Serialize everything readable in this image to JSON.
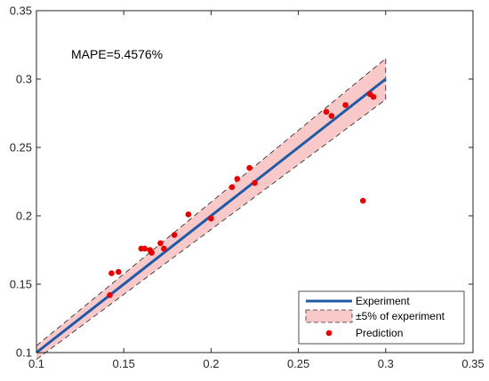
{
  "chart_data": {
    "type": "scatter",
    "xlim": [
      0.1,
      0.35
    ],
    "ylim": [
      0.1,
      0.35
    ],
    "x_ticks": [
      0.1,
      0.15,
      0.2,
      0.25,
      0.3,
      0.35
    ],
    "y_ticks": [
      0.1,
      0.15,
      0.2,
      0.25,
      0.3,
      0.35
    ],
    "x_tick_labels": [
      "0.1",
      "0.15",
      "0.2",
      "0.25",
      "0.3",
      "0.35"
    ],
    "y_tick_labels": [
      "0.1",
      "0.15",
      "0.2",
      "0.25",
      "0.3",
      "0.35"
    ],
    "annotation": "MAPE=5.4576%",
    "grid": false,
    "legend_position": "bottom-right",
    "legend": [
      {
        "label": "Experiment",
        "type": "line",
        "color": "#1f5aa6"
      },
      {
        "label": "±5% of experiment",
        "type": "band",
        "color": "#f9c9c9"
      },
      {
        "label": "Prediction",
        "type": "marker",
        "color": "#e60000"
      }
    ],
    "series": [
      {
        "name": "Experiment",
        "type": "line",
        "x": [
          0.1,
          0.3
        ],
        "y": [
          0.1,
          0.3
        ]
      },
      {
        "name": "±5% of experiment",
        "type": "band",
        "x": [
          0.1,
          0.3
        ],
        "lower": [
          0.095,
          0.285
        ],
        "upper": [
          0.105,
          0.315
        ]
      },
      {
        "name": "Prediction",
        "type": "scatter",
        "points": [
          [
            0.142,
            0.142
          ],
          [
            0.143,
            0.158
          ],
          [
            0.147,
            0.159
          ],
          [
            0.16,
            0.176
          ],
          [
            0.162,
            0.176
          ],
          [
            0.165,
            0.175
          ],
          [
            0.166,
            0.173
          ],
          [
            0.171,
            0.18
          ],
          [
            0.173,
            0.176
          ],
          [
            0.179,
            0.186
          ],
          [
            0.187,
            0.201
          ],
          [
            0.2,
            0.198
          ],
          [
            0.212,
            0.221
          ],
          [
            0.215,
            0.227
          ],
          [
            0.222,
            0.235
          ],
          [
            0.225,
            0.224
          ],
          [
            0.266,
            0.276
          ],
          [
            0.269,
            0.273
          ],
          [
            0.277,
            0.281
          ],
          [
            0.287,
            0.211
          ],
          [
            0.291,
            0.289
          ],
          [
            0.293,
            0.287
          ]
        ]
      }
    ],
    "colors": {
      "experiment_line": "#1f5aa6",
      "band_fill": "#f9c9c9",
      "band_edge": "#333333",
      "prediction": "#e60000",
      "axis": "#262626"
    }
  }
}
